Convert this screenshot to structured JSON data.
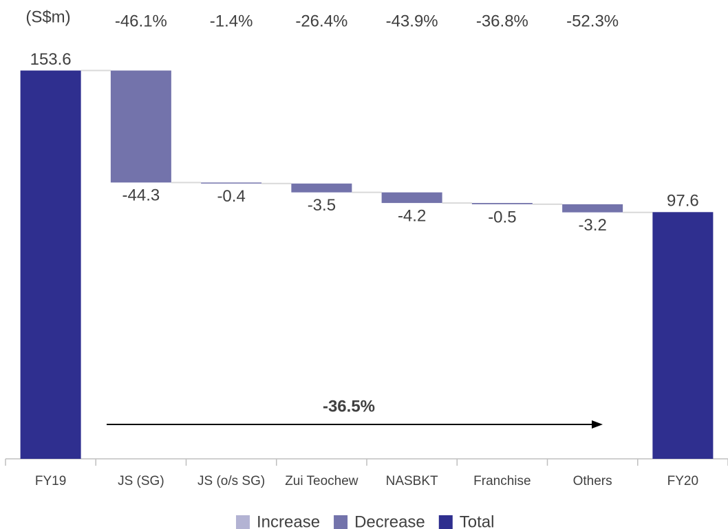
{
  "chart_data": {
    "type": "waterfall",
    "y_label": "(S$m)",
    "categories": [
      "FY19",
      "JS (SG)",
      "JS (o/s SG)",
      "Zui Teochew",
      "NASBKT",
      "Franchise",
      "Others",
      "FY20"
    ],
    "values": [
      153.6,
      -44.3,
      -0.4,
      -3.5,
      -4.2,
      -0.5,
      -3.2,
      97.6
    ],
    "change_labels": [
      "-46.1%",
      "-1.4%",
      "-26.4%",
      "-43.9%",
      "-36.8%",
      "-52.3%"
    ],
    "overall_change": "-36.5%",
    "legend": [
      {
        "name": "Increase",
        "color": "#b3b3d3"
      },
      {
        "name": "Decrease",
        "color": "#7373ab"
      },
      {
        "name": "Total",
        "color": "#2f2f8f"
      }
    ],
    "ylim": [
      0,
      160
    ]
  }
}
